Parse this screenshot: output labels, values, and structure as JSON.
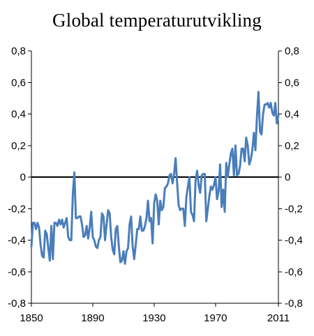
{
  "chart_data": {
    "type": "line",
    "title": "Global temperaturutvikling",
    "xlabel": "",
    "ylabel": "",
    "xlim": [
      1850,
      2011
    ],
    "ylim": [
      -0.8,
      0.8
    ],
    "x_ticks": [
      "1850",
      "1890",
      "1930",
      "1970",
      "2011"
    ],
    "y_ticks_left": [
      "0,8",
      "0,6",
      "0,4",
      "0,2",
      "0",
      "-0,2",
      "-0,4",
      "-0,6",
      "-0,8"
    ],
    "y_ticks_right": [
      "0,8",
      "0,6",
      "0,4",
      "0,2",
      "0",
      "-0,2",
      "-0,4",
      "-0,6",
      "-0,8"
    ],
    "grid": false,
    "legend": "none",
    "reference_line": 0,
    "colors": {
      "series": "#4a7ebb",
      "zero_line": "#000000"
    },
    "series": [
      {
        "x": [
          1850,
          1851,
          1852,
          1853,
          1854,
          1855,
          1856,
          1857,
          1858,
          1859,
          1860,
          1861,
          1862,
          1863,
          1864,
          1865,
          1866,
          1867,
          1868,
          1869,
          1870,
          1871,
          1872,
          1873,
          1874,
          1875,
          1876,
          1877,
          1878,
          1879,
          1880,
          1881,
          1882,
          1883,
          1884,
          1885,
          1886,
          1887,
          1888,
          1889,
          1890,
          1891,
          1892,
          1893,
          1894,
          1895,
          1896,
          1897,
          1898,
          1899,
          1900,
          1901,
          1902,
          1903,
          1904,
          1905,
          1906,
          1907,
          1908,
          1909,
          1910,
          1911,
          1912,
          1913,
          1914,
          1915,
          1916,
          1917,
          1918,
          1919,
          1920,
          1921,
          1922,
          1923,
          1924,
          1925,
          1926,
          1927,
          1928,
          1929,
          1930,
          1931,
          1932,
          1933,
          1934,
          1935,
          1936,
          1937,
          1938,
          1939,
          1940,
          1941,
          1942,
          1943,
          1944,
          1945,
          1946,
          1947,
          1948,
          1949,
          1950,
          1951,
          1952,
          1953,
          1954,
          1955,
          1956,
          1957,
          1958,
          1959,
          1960,
          1961,
          1962,
          1963,
          1964,
          1965,
          1966,
          1967,
          1968,
          1969,
          1970,
          1971,
          1972,
          1973,
          1974,
          1975,
          1976,
          1977,
          1978,
          1979,
          1980,
          1981,
          1982,
          1983,
          1984,
          1985,
          1986,
          1987,
          1988,
          1989,
          1990,
          1991,
          1992,
          1993,
          1994,
          1995,
          1996,
          1997,
          1998,
          1999,
          2000,
          2001,
          2002,
          2003,
          2004,
          2005,
          2006,
          2007,
          2008,
          2009,
          2010,
          2011
        ],
        "values": [
          -0.44,
          -0.29,
          -0.29,
          -0.33,
          -0.29,
          -0.32,
          -0.43,
          -0.5,
          -0.51,
          -0.34,
          -0.36,
          -0.45,
          -0.53,
          -0.31,
          -0.52,
          -0.29,
          -0.29,
          -0.31,
          -0.27,
          -0.3,
          -0.27,
          -0.32,
          -0.29,
          -0.26,
          -0.38,
          -0.4,
          -0.4,
          -0.11,
          0.03,
          -0.26,
          -0.26,
          -0.25,
          -0.25,
          -0.3,
          -0.38,
          -0.37,
          -0.31,
          -0.39,
          -0.32,
          -0.22,
          -0.38,
          -0.4,
          -0.44,
          -0.45,
          -0.4,
          -0.38,
          -0.23,
          -0.25,
          -0.4,
          -0.3,
          -0.21,
          -0.23,
          -0.38,
          -0.46,
          -0.49,
          -0.33,
          -0.31,
          -0.44,
          -0.54,
          -0.53,
          -0.47,
          -0.55,
          -0.47,
          -0.45,
          -0.3,
          -0.25,
          -0.44,
          -0.52,
          -0.43,
          -0.33,
          -0.33,
          -0.25,
          -0.34,
          -0.34,
          -0.31,
          -0.26,
          -0.15,
          -0.28,
          -0.26,
          -0.42,
          -0.17,
          -0.11,
          -0.15,
          -0.3,
          -0.15,
          -0.21,
          -0.19,
          -0.07,
          -0.06,
          -0.04,
          0.01,
          0.02,
          -0.04,
          0.02,
          0.12,
          -0.04,
          -0.18,
          -0.21,
          -0.2,
          -0.2,
          -0.31,
          -0.13,
          -0.06,
          0.0,
          -0.22,
          -0.24,
          -0.28,
          -0.02,
          0.04,
          -0.05,
          -0.1,
          0.01,
          0.02,
          0.02,
          -0.28,
          -0.2,
          -0.12,
          -0.06,
          -0.08,
          -0.05,
          0.0,
          -0.14,
          -0.09,
          0.08,
          -0.19,
          -0.08,
          -0.22,
          0.09,
          0.0,
          0.08,
          0.15,
          0.18,
          0.01,
          0.2,
          0.01,
          0.02,
          0.07,
          0.18,
          0.18,
          0.1,
          0.25,
          0.2,
          0.08,
          0.11,
          0.17,
          0.28,
          0.17,
          0.38,
          0.54,
          0.29,
          0.27,
          0.4,
          0.46,
          0.46,
          0.47,
          0.44,
          0.47,
          0.41,
          0.39,
          0.47,
          0.34,
          0.39
        ]
      }
    ]
  }
}
